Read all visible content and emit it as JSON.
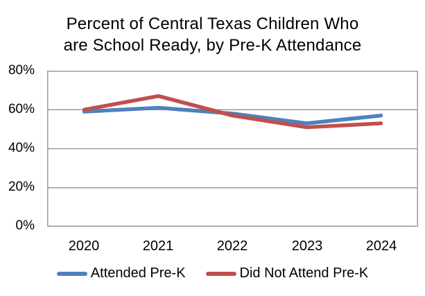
{
  "title": {
    "lines": [
      "Percent of Central Texas Children Who",
      "are School Ready, by Pre-K Attendance"
    ]
  },
  "chart_data": {
    "type": "line",
    "title": "Percent of Central Texas Children Who are School Ready, by Pre-K Attendance",
    "categories": [
      "2020",
      "2021",
      "2022",
      "2023",
      "2024"
    ],
    "series": [
      {
        "name": "Attended Pre-K",
        "color": "#4F81BD",
        "values": [
          59,
          61,
          58,
          53,
          57
        ]
      },
      {
        "name": "Did Not Attend Pre-K",
        "color": "#C0504D",
        "values": [
          60,
          67,
          57,
          51,
          53
        ]
      }
    ],
    "xlabel": "",
    "ylabel": "",
    "ylim": [
      0,
      80
    ],
    "yticks": [
      0,
      20,
      40,
      60,
      80
    ],
    "ytick_labels": [
      "0%",
      "20%",
      "40%",
      "60%",
      "80%"
    ],
    "grid": true,
    "legend_position": "bottom"
  },
  "colors": {
    "gridline": "#9A9A9A",
    "text": "#000000",
    "background": "#FFFFFF"
  }
}
